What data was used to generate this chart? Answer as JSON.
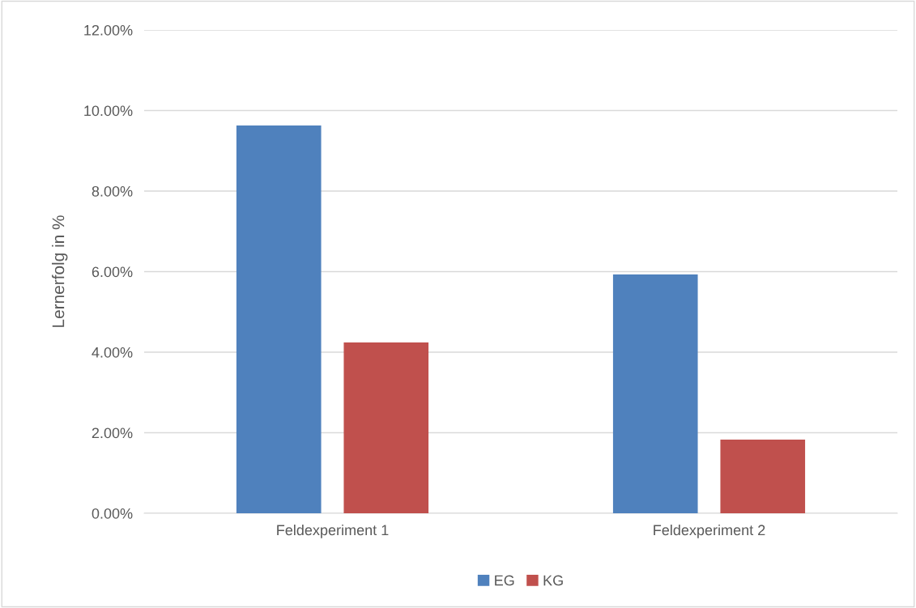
{
  "chart_data": {
    "type": "bar",
    "ylabel": "Lernerfolg in %",
    "categories": [
      "Feldexperiment 1",
      "Feldexperiment 2"
    ],
    "series": [
      {
        "name": "EG",
        "color": "#4f81bd",
        "values": [
          9.63,
          5.93
        ]
      },
      {
        "name": "KG",
        "color": "#c0504d",
        "values": [
          4.24,
          1.83
        ]
      }
    ],
    "ylim": [
      0,
      12
    ],
    "yticks": [
      {
        "value": 0,
        "label": "0.00%"
      },
      {
        "value": 2,
        "label": "2.00%"
      },
      {
        "value": 4,
        "label": "4.00%"
      },
      {
        "value": 6,
        "label": "6.00%"
      },
      {
        "value": 8,
        "label": "8.00%"
      },
      {
        "value": 10,
        "label": "10.00%"
      },
      {
        "value": 12,
        "label": "12.00%"
      }
    ],
    "grid": "y",
    "legend": "bottom"
  }
}
